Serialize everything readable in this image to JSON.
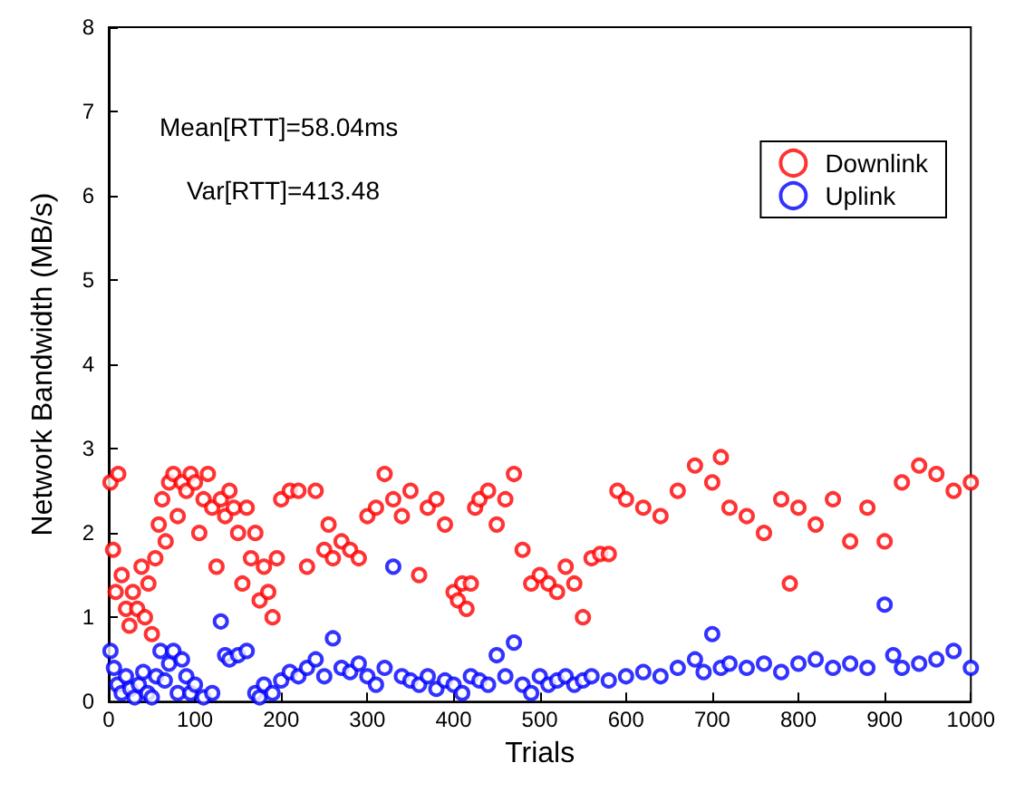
{
  "chart_data": {
    "type": "scatter",
    "xlabel": "Trials",
    "ylabel": "Network Bandwidth (MB/s)",
    "xlim": [
      0,
      1000
    ],
    "ylim": [
      0,
      8
    ],
    "xticks": [
      0,
      100,
      200,
      300,
      400,
      500,
      600,
      700,
      800,
      900,
      1000
    ],
    "yticks": [
      0,
      1,
      2,
      3,
      4,
      5,
      6,
      7,
      8
    ],
    "grid": false,
    "legend": "top right",
    "marker": "circle",
    "annotations": [
      "Mean[RTT]=58.04ms",
      "Var[RTT]=413.48"
    ],
    "series": [
      {
        "name": "Downlink",
        "color": "#ff0000",
        "x": [
          2,
          5,
          8,
          11,
          15,
          20,
          24,
          28,
          33,
          38,
          42,
          46,
          50,
          54,
          58,
          62,
          66,
          70,
          75,
          80,
          85,
          90,
          95,
          100,
          105,
          110,
          115,
          120,
          125,
          130,
          135,
          140,
          145,
          150,
          155,
          160,
          165,
          170,
          175,
          180,
          185,
          190,
          195,
          200,
          210,
          220,
          230,
          240,
          250,
          255,
          260,
          270,
          280,
          290,
          300,
          310,
          320,
          330,
          340,
          350,
          360,
          370,
          380,
          390,
          400,
          405,
          410,
          415,
          420,
          425,
          430,
          440,
          450,
          460,
          470,
          480,
          490,
          500,
          510,
          520,
          530,
          540,
          550,
          560,
          570,
          580,
          590,
          600,
          620,
          640,
          660,
          680,
          700,
          710,
          720,
          740,
          760,
          780,
          790,
          800,
          820,
          840,
          860,
          880,
          900,
          920,
          940,
          960,
          980,
          1000
        ],
        "values": [
          2.6,
          1.8,
          1.3,
          2.7,
          1.5,
          1.1,
          0.9,
          1.3,
          1.1,
          1.6,
          1.0,
          1.4,
          0.8,
          1.7,
          2.1,
          2.4,
          1.9,
          2.6,
          2.7,
          2.2,
          2.6,
          2.5,
          2.7,
          2.6,
          2.0,
          2.4,
          2.7,
          2.3,
          1.6,
          2.4,
          2.2,
          2.5,
          2.3,
          2.0,
          1.4,
          2.3,
          1.7,
          2.0,
          1.2,
          1.6,
          1.3,
          1.0,
          1.7,
          2.4,
          2.5,
          2.5,
          1.6,
          2.5,
          1.8,
          2.1,
          1.7,
          1.9,
          1.8,
          1.7,
          2.2,
          2.3,
          2.7,
          2.4,
          2.2,
          2.5,
          1.5,
          2.3,
          2.4,
          2.1,
          1.3,
          1.2,
          1.4,
          1.1,
          1.4,
          2.3,
          2.4,
          2.5,
          2.1,
          2.4,
          2.7,
          1.8,
          1.4,
          1.5,
          1.4,
          1.3,
          1.6,
          1.4,
          1.0,
          1.7,
          1.75,
          1.75,
          2.5,
          2.4,
          2.3,
          2.2,
          2.5,
          2.8,
          2.6,
          2.9,
          2.3,
          2.2,
          2.0,
          2.4,
          1.4,
          2.3,
          2.1,
          2.4,
          1.9,
          2.3,
          1.9,
          2.6,
          2.8,
          2.7,
          2.5,
          2.6
        ]
      },
      {
        "name": "Uplink",
        "color": "#0000ff",
        "x": [
          2,
          6,
          10,
          15,
          20,
          25,
          30,
          35,
          40,
          45,
          50,
          55,
          60,
          65,
          70,
          75,
          80,
          85,
          90,
          95,
          100,
          110,
          120,
          130,
          135,
          140,
          150,
          160,
          170,
          175,
          180,
          190,
          200,
          210,
          220,
          230,
          240,
          250,
          260,
          270,
          280,
          290,
          300,
          310,
          320,
          330,
          340,
          350,
          360,
          370,
          380,
          390,
          400,
          410,
          420,
          430,
          440,
          450,
          460,
          470,
          480,
          490,
          500,
          510,
          520,
          530,
          540,
          550,
          560,
          580,
          600,
          620,
          640,
          660,
          680,
          690,
          700,
          710,
          720,
          740,
          760,
          780,
          800,
          820,
          840,
          860,
          880,
          900,
          910,
          920,
          940,
          960,
          980,
          1000
        ],
        "values": [
          0.6,
          0.4,
          0.2,
          0.1,
          0.3,
          0.15,
          0.05,
          0.2,
          0.35,
          0.1,
          0.05,
          0.3,
          0.6,
          0.25,
          0.45,
          0.6,
          0.1,
          0.5,
          0.3,
          0.1,
          0.2,
          0.05,
          0.1,
          0.95,
          0.55,
          0.5,
          0.55,
          0.6,
          0.1,
          0.05,
          0.2,
          0.1,
          0.25,
          0.35,
          0.3,
          0.4,
          0.5,
          0.3,
          0.75,
          0.4,
          0.35,
          0.45,
          0.3,
          0.2,
          0.4,
          1.6,
          0.3,
          0.25,
          0.2,
          0.3,
          0.15,
          0.25,
          0.2,
          0.1,
          0.3,
          0.25,
          0.2,
          0.55,
          0.3,
          0.7,
          0.2,
          0.1,
          0.3,
          0.2,
          0.25,
          0.3,
          0.2,
          0.25,
          0.3,
          0.25,
          0.3,
          0.35,
          0.3,
          0.4,
          0.5,
          0.35,
          0.8,
          0.4,
          0.45,
          0.4,
          0.45,
          0.35,
          0.45,
          0.5,
          0.4,
          0.45,
          0.4,
          1.15,
          0.55,
          0.4,
          0.45,
          0.5,
          0.6,
          0.4
        ]
      }
    ]
  }
}
